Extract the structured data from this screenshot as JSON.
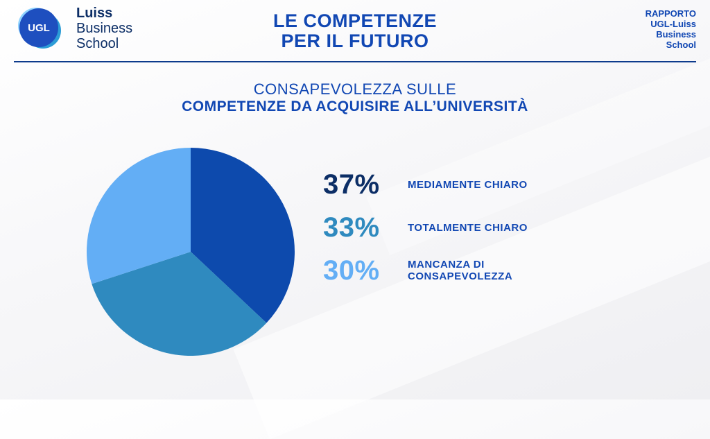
{
  "header": {
    "logo_badge": "UGL",
    "logo_line1": "Luiss",
    "logo_line2": "Business",
    "logo_line3": "School",
    "title_line1": "LE COMPETENZE",
    "title_line2": "PER IL FUTURO",
    "report_line1": "RAPPORTO",
    "report_line2": "UGL-Luiss",
    "report_line3": "Business",
    "report_line4": "School"
  },
  "subtitle": {
    "line1": "CONSAPEVOLEZZA SULLE",
    "line2": "COMPETENZE DA ACQUISIRE ALL’UNIVERSITÀ"
  },
  "chart_data": {
    "type": "pie",
    "title": "",
    "start_angle_deg": 0,
    "direction": "clockwise",
    "slices": [
      {
        "label_line1": "MEDIAMENTE CHIARO",
        "label_line2": "",
        "value": 37,
        "value_label": "37%",
        "color": "#0d4aad",
        "label_color": "#0c2e66"
      },
      {
        "label_line1": "TOTALMENTE CHIARO",
        "label_line2": "",
        "value": 33,
        "value_label": "33%",
        "color": "#2f8abf",
        "label_color": "#2f8abf"
      },
      {
        "label_line1": "MANCANZA DI",
        "label_line2": "CONSAPEVOLEZZA",
        "value": 30,
        "value_label": "30%",
        "color": "#63aef5",
        "label_color": "#63aef5"
      }
    ]
  }
}
